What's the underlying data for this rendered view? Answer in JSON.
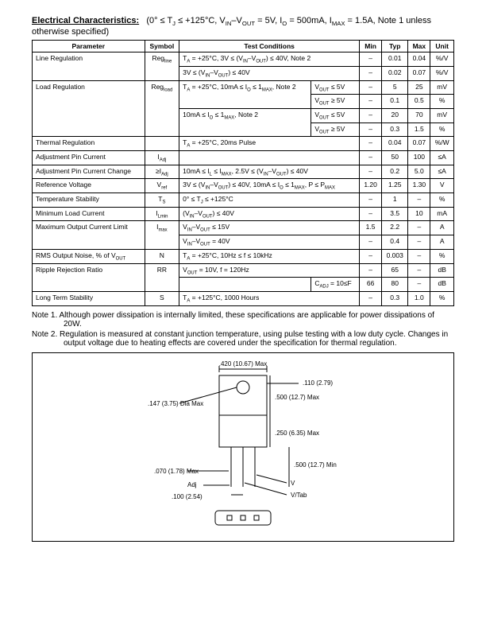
{
  "header": {
    "label": "Electrical Characteristics:",
    "conditions": "(0° ≤ T_J ≤ +125°C, V_IN–V_OUT = 5V, I_O = 500mA, I_MAX = 1.5A, Note 1 unless otherwise specified)"
  },
  "columns": [
    "Parameter",
    "Symbol",
    "Test Conditions",
    "",
    "Min",
    "Typ",
    "Max",
    "Unit"
  ],
  "rows": [
    {
      "p": "Line Regulation",
      "p_rs": 2,
      "s": "Reg_line",
      "s_rs": 2,
      "tc": "T_A = +25°C, 3V ≤ (V_IN–V_OUT) ≤ 40V, Note 2",
      "tc_cs": 2,
      "min": "–",
      "typ": "0.01",
      "max": "0.04",
      "u": "%/V"
    },
    {
      "tc": "3V ≤ (V_IN–V_OUT) ≤ 40V",
      "tc_cs": 2,
      "min": "–",
      "typ": "0.02",
      "max": "0.07",
      "u": "%/V"
    },
    {
      "p": "Load Regulation",
      "p_rs": 4,
      "s": "Reg_load",
      "s_rs": 4,
      "tc": "T_A = +25°C, 10mA ≤ I_O ≤ 1_MAX, Note 2",
      "tc_rs": 2,
      "tc2": "V_OUT ≤ 5V",
      "min": "–",
      "typ": "5",
      "max": "25",
      "u": "mV"
    },
    {
      "tc2": "V_OUT ≥ 5V",
      "min": "–",
      "typ": "0.1",
      "max": "0.5",
      "u": "%"
    },
    {
      "tc": "10mA ≤ I_O ≤ 1_MAX, Note 2",
      "tc_rs": 2,
      "tc2": "V_OUT ≤ 5V",
      "min": "–",
      "typ": "20",
      "max": "70",
      "u": "mV"
    },
    {
      "tc2": "V_OUT ≥ 5V",
      "min": "–",
      "typ": "0.3",
      "max": "1.5",
      "u": "%"
    },
    {
      "p": "Thermal Regulation",
      "s": "",
      "tc": "T_A = +25°C, 20ms Pulse",
      "tc_cs": 2,
      "min": "–",
      "typ": "0.04",
      "max": "0.07",
      "u": "%/W"
    },
    {
      "p": "Adjustment Pin Current",
      "s": "I_Adj",
      "tc": "",
      "tc_cs": 2,
      "min": "–",
      "typ": "50",
      "max": "100",
      "u": "≤A"
    },
    {
      "p": "Adjustment Pin Current Change",
      "s": "≥I_Adj",
      "tc": "10mA ≤ I_L ≤ I_MAX, 2.5V ≤ (V_IN–V_OUT) ≤ 40V",
      "tc_cs": 2,
      "min": "–",
      "typ": "0.2",
      "max": "5.0",
      "u": "≤A"
    },
    {
      "p": "Reference Voltage",
      "s": "V_ref",
      "tc": "3V ≤ (V_IN–V_OUT) ≤ 40V, 10mA ≤ I_O ≤ 1_MAX, P ≤ P_MAX",
      "tc_cs": 2,
      "min": "1.20",
      "typ": "1.25",
      "max": "1.30",
      "u": "V"
    },
    {
      "p": "Temperature Stability",
      "s": "T_S",
      "tc": "0° ≤ T_J ≤ +125°C",
      "tc_cs": 2,
      "min": "–",
      "typ": "1",
      "max": "–",
      "u": "%"
    },
    {
      "p": "Minimum Load Current",
      "s": "I_Lmin",
      "tc": "(V_IN–V_OUT) ≤ 40V",
      "tc_cs": 2,
      "min": "–",
      "typ": "3.5",
      "max": "10",
      "u": "mA"
    },
    {
      "p": "Maximum Output Current Limit",
      "p_rs": 2,
      "s": "I_max",
      "s_rs": 2,
      "tc": "V_IN–V_OUT ≤ 15V",
      "tc_cs": 2,
      "min": "1.5",
      "typ": "2.2",
      "max": "–",
      "u": "A"
    },
    {
      "tc": "V_IN–V_OUT = 40V",
      "tc_cs": 2,
      "min": "–",
      "typ": "0.4",
      "max": "–",
      "u": "A"
    },
    {
      "p": "RMS Output Noise, % of V_OUT",
      "s": "N",
      "tc": "T_A = +25°C, 10Hz ≤ f ≤ 10kHz",
      "tc_cs": 2,
      "min": "–",
      "typ": "0.003",
      "max": "–",
      "u": "%"
    },
    {
      "p": "Ripple Rejection Ratio",
      "p_rs": 2,
      "s": "RR",
      "s_rs": 2,
      "tc": "V_OUT = 10V, f = 120Hz",
      "tc_cs": 2,
      "min": "–",
      "typ": "65",
      "max": "–",
      "u": "dB"
    },
    {
      "tc": "",
      "tc2": "C_ADJ = 10≤F",
      "min": "66",
      "typ": "80",
      "max": "–",
      "u": "dB"
    },
    {
      "p": "Long Term Stability",
      "s": "S",
      "tc": "T_A = +125°C, 1000 Hours",
      "tc_cs": 2,
      "min": "–",
      "typ": "0.3",
      "max": "1.0",
      "u": "%"
    }
  ],
  "notes": {
    "n1": "Note  1. Although power dissipation is internally limited, these specifications are applicable for power dissipations of 20W.",
    "n2": "Note  2. Regulation is measured at constant junction temperature, using pulse testing with a low duty cycle.  Changes in output voltage due to heating effects are covered under the specification for thermal regulation."
  },
  "diagram": {
    "d1": ".420 (10.67) Max",
    "d2": ".110 (2.79)",
    "d3": ".147 (3.75) Dia Max",
    "d4": ".500 (12.7) Max",
    "d5": ".250 (6.35) Max",
    "d6": ".500 (12.7) Min",
    "d7": ".070 (1.78) Max",
    "d8": "Adj",
    "d9": ".100 (2.54)",
    "d10": "V_IN",
    "d11": "V_OUT/Tab"
  }
}
